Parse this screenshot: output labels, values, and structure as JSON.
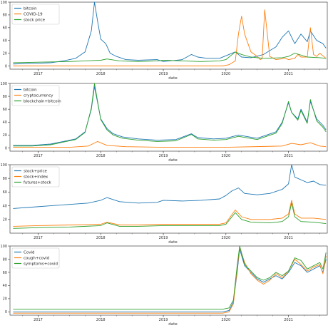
{
  "colors": {
    "blue": "#1f77b4",
    "orange": "#ff7f0e",
    "green": "#2ca02c",
    "axis": "#444444"
  },
  "chart_data": [
    {
      "type": "line",
      "title": "",
      "xlabel": "date",
      "ylabel": "",
      "xlim": [
        2016.55,
        2021.62
      ],
      "ylim": [
        -5,
        100
      ],
      "xticks": [
        2017,
        2018,
        2019,
        2020,
        2021
      ],
      "xtick_labels": [
        "2017",
        "2018",
        "2019",
        "2020",
        "2021"
      ],
      "yticks": [
        0,
        20,
        40,
        60,
        80,
        100
      ],
      "ytick_labels": [
        "0",
        "20",
        "40",
        "60",
        "80",
        "100"
      ],
      "grid": false,
      "legend_position": "top-left",
      "series": [
        {
          "name": "bitcoin",
          "color": "#1f77b4",
          "x": [
            2016.6,
            2016.9,
            2017.2,
            2017.4,
            2017.6,
            2017.75,
            2017.85,
            2017.9,
            2017.95,
            2018.0,
            2018.08,
            2018.15,
            2018.25,
            2018.4,
            2018.6,
            2018.9,
            2019.0,
            2019.3,
            2019.45,
            2019.55,
            2019.7,
            2019.9,
            2020.0,
            2020.15,
            2020.25,
            2020.4,
            2020.6,
            2020.8,
            2020.9,
            2021.0,
            2021.05,
            2021.1,
            2021.2,
            2021.3,
            2021.35,
            2021.45,
            2021.55,
            2021.6
          ],
          "y": [
            3,
            4,
            5,
            8,
            12,
            22,
            55,
            100,
            70,
            42,
            35,
            20,
            15,
            10,
            9,
            10,
            7,
            10,
            18,
            14,
            12,
            12,
            16,
            22,
            14,
            13,
            18,
            30,
            45,
            55,
            45,
            35,
            50,
            38,
            55,
            40,
            35,
            28
          ]
        },
        {
          "name": "COVID-19",
          "color": "#ff7f0e",
          "x": [
            2016.6,
            2019.95,
            2020.05,
            2020.15,
            2020.2,
            2020.25,
            2020.3,
            2020.4,
            2020.5,
            2020.55,
            2020.58,
            2020.62,
            2020.7,
            2020.8,
            2020.95,
            2021.0,
            2021.1,
            2021.15,
            2021.2,
            2021.3,
            2021.35,
            2021.4,
            2021.45,
            2021.5,
            2021.6
          ],
          "y": [
            0,
            0,
            2,
            8,
            50,
            78,
            50,
            22,
            15,
            10,
            12,
            88,
            15,
            10,
            12,
            10,
            12,
            18,
            14,
            14,
            60,
            18,
            15,
            20,
            12
          ]
        },
        {
          "name": "stock price",
          "color": "#2ca02c",
          "x": [
            2016.6,
            2017.0,
            2017.5,
            2018.0,
            2018.1,
            2018.3,
            2018.6,
            2018.9,
            2019.0,
            2019.3,
            2019.6,
            2019.9,
            2020.0,
            2020.15,
            2020.25,
            2020.4,
            2020.6,
            2020.9,
            2021.0,
            2021.1,
            2021.3,
            2021.5,
            2021.6
          ],
          "y": [
            5,
            6,
            7,
            9,
            11,
            8,
            7,
            8,
            9,
            8,
            7,
            8,
            10,
            22,
            18,
            14,
            12,
            13,
            15,
            20,
            14,
            13,
            12
          ]
        }
      ]
    },
    {
      "type": "line",
      "title": "",
      "xlabel": "date",
      "ylabel": "",
      "xlim": [
        2016.55,
        2021.62
      ],
      "ylim": [
        -5,
        100
      ],
      "xticks": [
        2017,
        2018,
        2019,
        2020,
        2021
      ],
      "xtick_labels": [
        "2017",
        "2018",
        "2019",
        "2020",
        "2021"
      ],
      "yticks": [
        0,
        20,
        40,
        60,
        80,
        100
      ],
      "ytick_labels": [
        "0",
        "20",
        "40",
        "60",
        "80",
        "100"
      ],
      "grid": false,
      "legend_position": "top-left",
      "series": [
        {
          "name": "bitcoin",
          "color": "#1f77b4",
          "x": [
            2016.6,
            2016.9,
            2017.2,
            2017.4,
            2017.6,
            2017.75,
            2017.85,
            2017.9,
            2017.95,
            2018.0,
            2018.1,
            2018.2,
            2018.35,
            2018.6,
            2018.9,
            2019.2,
            2019.45,
            2019.55,
            2019.8,
            2020.0,
            2020.2,
            2020.5,
            2020.8,
            2020.9,
            2021.0,
            2021.05,
            2021.15,
            2021.2,
            2021.3,
            2021.35,
            2021.45,
            2021.55,
            2021.6
          ],
          "y": [
            4,
            4,
            6,
            10,
            14,
            25,
            60,
            95,
            70,
            45,
            30,
            22,
            17,
            14,
            12,
            13,
            22,
            16,
            14,
            15,
            20,
            15,
            25,
            40,
            70,
            55,
            45,
            60,
            40,
            72,
            45,
            35,
            28
          ]
        },
        {
          "name": "cryptocurrency",
          "color": "#ff7f0e",
          "x": [
            2016.6,
            2017.5,
            2017.8,
            2017.95,
            2018.1,
            2018.4,
            2019.0,
            2020.0,
            2020.9,
            2021.05,
            2021.2,
            2021.35,
            2021.5,
            2021.6
          ],
          "y": [
            1,
            1,
            3,
            10,
            4,
            2,
            1,
            1,
            3,
            7,
            5,
            8,
            3,
            2
          ]
        },
        {
          "name": "blockchain+bitcoin",
          "color": "#2ca02c",
          "x": [
            2016.6,
            2016.9,
            2017.2,
            2017.4,
            2017.6,
            2017.75,
            2017.85,
            2017.9,
            2017.95,
            2018.0,
            2018.1,
            2018.2,
            2018.35,
            2018.6,
            2018.9,
            2019.2,
            2019.45,
            2019.55,
            2019.8,
            2020.0,
            2020.2,
            2020.5,
            2020.8,
            2020.9,
            2021.0,
            2021.05,
            2021.15,
            2021.2,
            2021.3,
            2021.35,
            2021.45,
            2021.55,
            2021.6
          ],
          "y": [
            3,
            3,
            5,
            9,
            13,
            24,
            62,
            100,
            72,
            44,
            28,
            20,
            15,
            12,
            10,
            11,
            21,
            14,
            12,
            13,
            18,
            13,
            23,
            38,
            72,
            55,
            43,
            58,
            38,
            75,
            42,
            32,
            25
          ]
        }
      ]
    },
    {
      "type": "line",
      "title": "",
      "xlabel": "date",
      "ylabel": "",
      "xlim": [
        2016.55,
        2021.62
      ],
      "ylim": [
        0,
        100
      ],
      "xticks": [
        2017,
        2018,
        2019,
        2020,
        2021
      ],
      "xtick_labels": [
        "2017",
        "2018",
        "2019",
        "2020",
        "2021"
      ],
      "yticks": [
        20,
        40,
        60,
        80,
        100
      ],
      "ytick_labels": [
        "20",
        "40",
        "60",
        "80",
        "100"
      ],
      "grid": false,
      "legend_position": "top-left",
      "series": [
        {
          "name": "stock+price",
          "color": "#1f77b4",
          "x": [
            2016.6,
            2016.9,
            2017.2,
            2017.5,
            2017.8,
            2018.0,
            2018.1,
            2018.3,
            2018.6,
            2018.9,
            2019.0,
            2019.3,
            2019.6,
            2019.9,
            2020.0,
            2020.1,
            2020.2,
            2020.3,
            2020.5,
            2020.7,
            2020.9,
            2021.0,
            2021.05,
            2021.1,
            2021.2,
            2021.3,
            2021.4,
            2021.5,
            2021.6
          ],
          "y": [
            36,
            38,
            40,
            42,
            44,
            48,
            52,
            46,
            44,
            45,
            48,
            47,
            48,
            50,
            55,
            62,
            66,
            58,
            56,
            58,
            64,
            72,
            100,
            82,
            78,
            74,
            76,
            71,
            70
          ]
        },
        {
          "name": "stock+index",
          "color": "#ff7f0e",
          "x": [
            2016.6,
            2017.0,
            2017.5,
            2018.0,
            2018.1,
            2018.3,
            2018.6,
            2019.0,
            2019.5,
            2019.9,
            2020.0,
            2020.15,
            2020.25,
            2020.4,
            2020.7,
            2020.9,
            2021.0,
            2021.05,
            2021.1,
            2021.2,
            2021.4,
            2021.6
          ],
          "y": [
            10,
            11,
            12,
            13,
            16,
            12,
            12,
            13,
            13,
            13,
            15,
            34,
            24,
            20,
            20,
            22,
            28,
            48,
            28,
            22,
            22,
            20
          ]
        },
        {
          "name": "futures+stock",
          "color": "#2ca02c",
          "x": [
            2016.6,
            2017.0,
            2017.5,
            2018.0,
            2018.1,
            2018.3,
            2018.6,
            2019.0,
            2019.5,
            2019.9,
            2020.0,
            2020.15,
            2020.25,
            2020.4,
            2020.7,
            2020.9,
            2021.0,
            2021.05,
            2021.1,
            2021.2,
            2021.4,
            2021.6
          ],
          "y": [
            7,
            8,
            9,
            11,
            15,
            10,
            10,
            11,
            11,
            11,
            13,
            30,
            20,
            16,
            15,
            17,
            24,
            44,
            24,
            17,
            16,
            14
          ]
        }
      ]
    },
    {
      "type": "line",
      "title": "",
      "xlabel": "date",
      "ylabel": "",
      "xlim": [
        2016.55,
        2021.62
      ],
      "ylim": [
        -5,
        100
      ],
      "xticks": [
        2017,
        2018,
        2019,
        2020,
        2021
      ],
      "xtick_labels": [
        "2017",
        "2018",
        "2019",
        "2020",
        "2021"
      ],
      "yticks": [
        0,
        20,
        40,
        60,
        80,
        100
      ],
      "ytick_labels": [
        "0",
        "20",
        "40",
        "60",
        "80",
        "100"
      ],
      "grid": false,
      "legend_position": "top-left",
      "series": [
        {
          "name": "Covid",
          "color": "#1f77b4",
          "x": [
            2016.6,
            2019.95,
            2020.05,
            2020.12,
            2020.18,
            2020.22,
            2020.3,
            2020.4,
            2020.5,
            2020.6,
            2020.7,
            2020.8,
            2020.9,
            2021.0,
            2021.1,
            2021.2,
            2021.3,
            2021.4,
            2021.5,
            2021.55,
            2021.6
          ],
          "y": [
            0,
            0,
            2,
            15,
            60,
            95,
            70,
            60,
            50,
            45,
            50,
            55,
            50,
            60,
            75,
            70,
            60,
            65,
            70,
            60,
            80
          ]
        },
        {
          "name": "cough+covid",
          "color": "#ff7f0e",
          "x": [
            2016.6,
            2019.95,
            2020.05,
            2020.12,
            2020.18,
            2020.22,
            2020.3,
            2020.4,
            2020.5,
            2020.6,
            2020.7,
            2020.8,
            2020.9,
            2021.0,
            2021.1,
            2021.2,
            2021.3,
            2021.4,
            2021.5,
            2021.55,
            2021.6
          ],
          "y": [
            -2,
            -2,
            0,
            12,
            65,
            98,
            75,
            58,
            48,
            42,
            48,
            58,
            52,
            62,
            80,
            72,
            62,
            68,
            72,
            58,
            85
          ]
        },
        {
          "name": "symptoms+covid",
          "color": "#2ca02c",
          "x": [
            2016.6,
            2019.95,
            2020.05,
            2020.12,
            2020.18,
            2020.22,
            2020.3,
            2020.4,
            2020.5,
            2020.6,
            2020.7,
            2020.8,
            2020.9,
            2021.0,
            2021.1,
            2021.2,
            2021.3,
            2021.4,
            2021.5,
            2021.55,
            2021.6
          ],
          "y": [
            4,
            4,
            6,
            18,
            70,
            100,
            72,
            62,
            52,
            48,
            52,
            60,
            55,
            62,
            82,
            78,
            65,
            70,
            75,
            65,
            90
          ]
        }
      ]
    }
  ]
}
